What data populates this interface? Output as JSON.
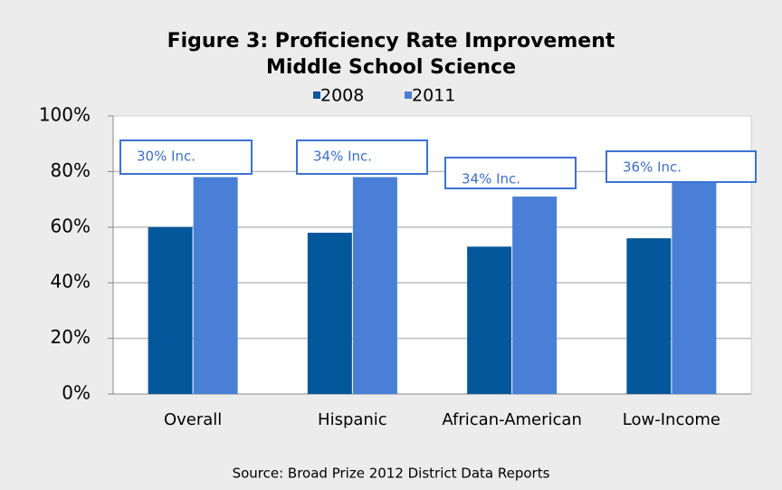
{
  "chart_data": {
    "type": "bar",
    "title": "Figure 3: Proficiency Rate Improvement",
    "subtitle": "Middle School Science",
    "categories": [
      "Overall",
      "Hispanic",
      "African-American",
      "Low-Income"
    ],
    "series": [
      {
        "name": "2008",
        "color": "#03579b",
        "values": [
          60,
          58,
          53,
          56
        ]
      },
      {
        "name": "2011",
        "color": "#4a7fd7",
        "values": [
          78,
          78,
          71,
          76
        ]
      }
    ],
    "ylim": [
      0,
      100
    ],
    "yticks": [
      {
        "value": 0,
        "label": "0%"
      },
      {
        "value": 20,
        "label": "20%"
      },
      {
        "value": 40,
        "label": "40%"
      },
      {
        "value": 60,
        "label": "60%"
      },
      {
        "value": 80,
        "label": "80%"
      },
      {
        "value": 100,
        "label": "100%"
      }
    ],
    "grid": true,
    "annotations": [
      "30% Inc.",
      "34% Inc.",
      "34%  Inc.",
      "36% Inc."
    ],
    "source": "Source: Broad Prize 2012 District Data Reports"
  }
}
